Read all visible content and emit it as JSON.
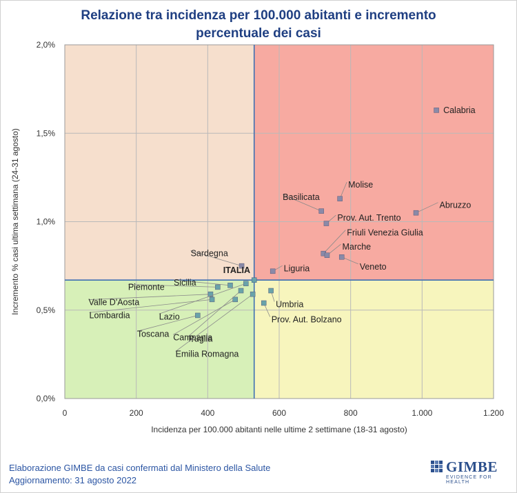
{
  "title_line1": "Relazione tra incidenza per 100.000 abitanti e incremento",
  "title_line2": "percentuale dei casi",
  "footer": {
    "line1": "Elaborazione GIMBE da casi confermati dal Ministero della Salute",
    "line2": "Aggiornamento: 31 agosto 2022"
  },
  "logo": {
    "name": "GIMBE",
    "tagline": "EVIDENCE FOR HEALTH"
  },
  "colors": {
    "quad_top_left": "#f6dfcd",
    "quad_top_right": "#f7aaa1",
    "quad_bottom_left": "#d7f0b8",
    "quad_bottom_right": "#f7f5bd",
    "marker": "#8a8aa8",
    "marker_low": "#69a3aa",
    "divider": "#3d6fb2",
    "title": "#1f3f82"
  },
  "chart_data": {
    "type": "scatter",
    "title": "Relazione tra incidenza per 100.000 abitanti e incremento percentuale dei casi",
    "xlabel": "Incidenza per 100.000 abitanti nelle ultime 2 settimane (18-31 agosto)",
    "ylabel": "Incremento % casi ultima settimana (24-31 agosto)",
    "xlim": [
      0,
      1200
    ],
    "ylim": [
      0.0,
      2.0
    ],
    "x_ticks": [
      "0",
      "200",
      "400",
      "600",
      "800",
      "1.000",
      "1.200"
    ],
    "y_ticks": [
      "0,0%",
      "0,5%",
      "1,0%",
      "1,5%",
      "2,0%"
    ],
    "grid": true,
    "reference": {
      "name": "ITALIA",
      "x": 530,
      "y": 0.67
    },
    "points": [
      {
        "name": "Calabria",
        "x": 1040,
        "y": 1.63
      },
      {
        "name": "Molise",
        "x": 770,
        "y": 1.13
      },
      {
        "name": "Basilicata",
        "x": 718,
        "y": 1.06
      },
      {
        "name": "Abruzzo",
        "x": 983,
        "y": 1.05
      },
      {
        "name": "Prov. Aut. Trento",
        "x": 732,
        "y": 0.99
      },
      {
        "name": "Friuli Venezia Giulia",
        "x": 724,
        "y": 0.82
      },
      {
        "name": "Marche",
        "x": 734,
        "y": 0.81
      },
      {
        "name": "Veneto",
        "x": 775,
        "y": 0.8
      },
      {
        "name": "Sardegna",
        "x": 495,
        "y": 0.75
      },
      {
        "name": "Liguria",
        "x": 582,
        "y": 0.72
      },
      {
        "name": "Sicilia",
        "x": 463,
        "y": 0.64
      },
      {
        "name": "Piemonte",
        "x": 428,
        "y": 0.63
      },
      {
        "name": "Valle D'Aosta",
        "x": 408,
        "y": 0.59
      },
      {
        "name": "Lombardia",
        "x": 412,
        "y": 0.56
      },
      {
        "name": "Lazio",
        "x": 507,
        "y": 0.65
      },
      {
        "name": "Toscana",
        "x": 372,
        "y": 0.47
      },
      {
        "name": "Campania",
        "x": 477,
        "y": 0.56
      },
      {
        "name": "Puglia",
        "x": 493,
        "y": 0.61
      },
      {
        "name": "Emilia Romagna",
        "x": 526,
        "y": 0.59
      },
      {
        "name": "Umbria",
        "x": 577,
        "y": 0.61
      },
      {
        "name": "Prov. Aut. Bolzano",
        "x": 557,
        "y": 0.54
      }
    ]
  }
}
